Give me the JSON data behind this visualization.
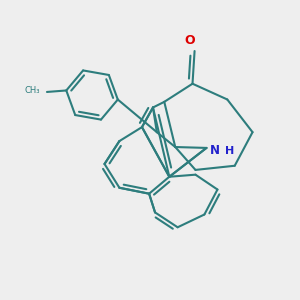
{
  "background_color": "#eeeeee",
  "bond_color": "#2d7d7d",
  "bond_width": 1.5,
  "O_color": "#dd0000",
  "N_color": "#2222cc",
  "figsize": [
    3.0,
    3.0
  ],
  "dpi": 100,
  "xlim": [
    0,
    10
  ],
  "ylim": [
    0,
    10
  ]
}
